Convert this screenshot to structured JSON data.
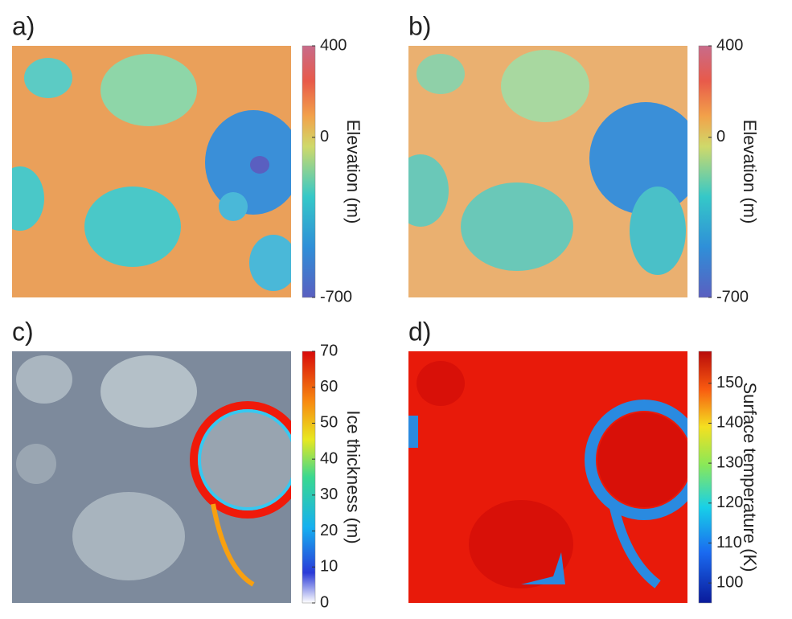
{
  "panels": [
    {
      "label": "a)",
      "colorbar": {
        "label": "Elevation (m)",
        "lim": [
          -700,
          400
        ],
        "ticks": [
          400,
          0,
          -700
        ]
      }
    },
    {
      "label": "b)",
      "colorbar": {
        "label": "Elevation (m)",
        "lim": [
          -700,
          400
        ],
        "ticks": [
          400,
          0,
          -700
        ]
      }
    },
    {
      "label": "c)",
      "colorbar": {
        "label": "Ice thickness (m)",
        "lim": [
          0,
          70
        ],
        "ticks": [
          0,
          10,
          20,
          30,
          40,
          50,
          60,
          70
        ]
      }
    },
    {
      "label": "d)",
      "colorbar": {
        "label": "Surface temperature (K)",
        "lim": [
          95,
          158
        ],
        "ticks": [
          100,
          110,
          120,
          130,
          140,
          150
        ]
      }
    }
  ]
}
